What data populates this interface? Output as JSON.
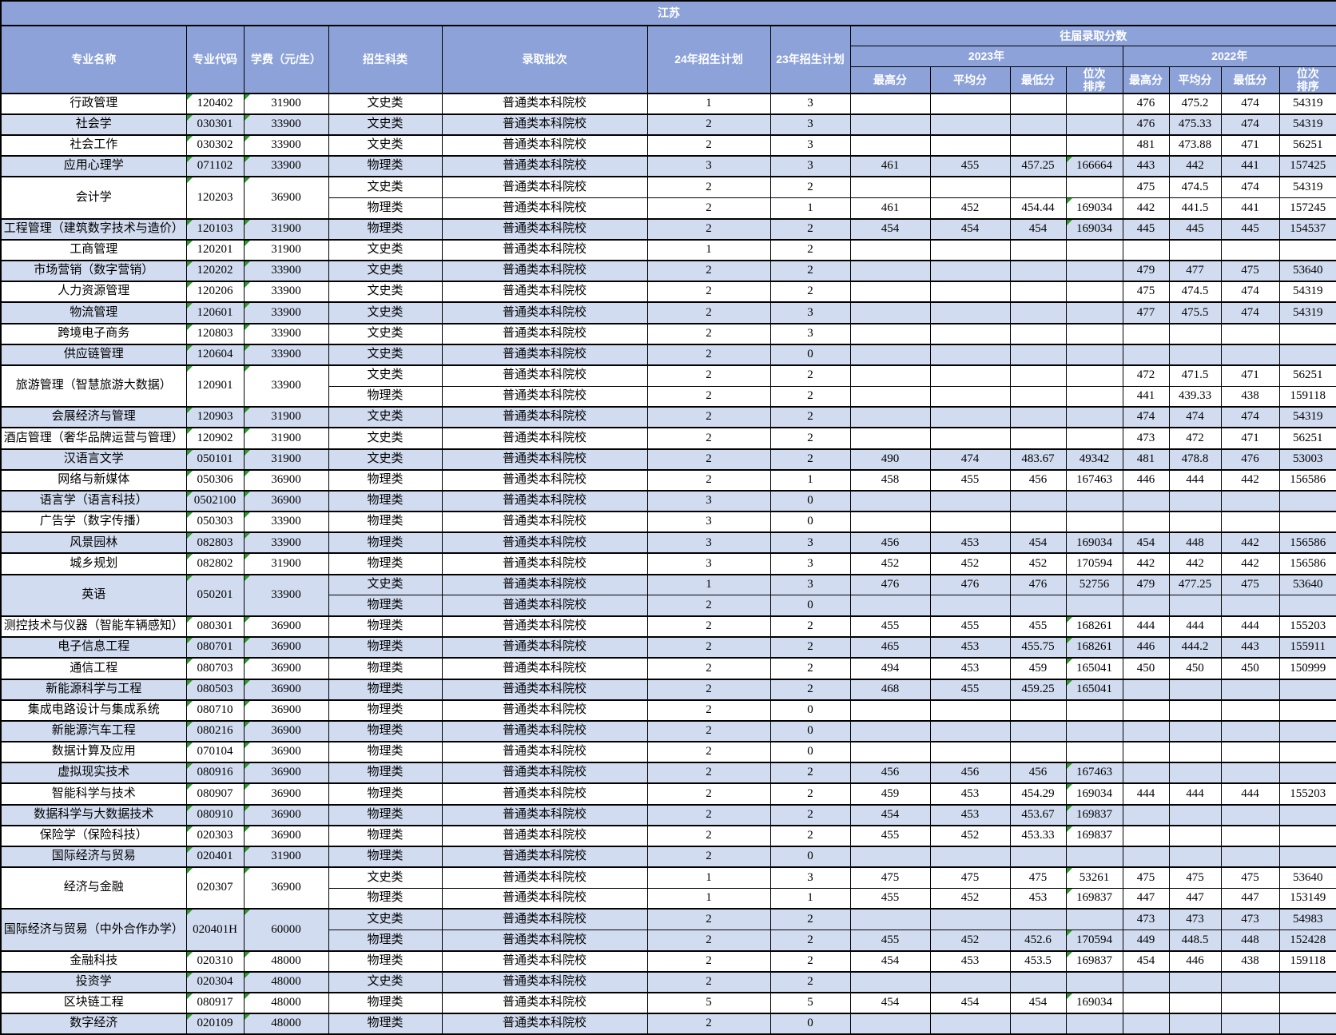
{
  "title": "江苏",
  "batch_value": "普通类本科院校",
  "header": {
    "major": "专业名称",
    "code": "专业代码",
    "fee": "学费（元/生）",
    "category": "招生科类",
    "batch": "录取批次",
    "plan24": "24年招生计划",
    "plan23": "23年招生计划",
    "past_scores": "往届录取分数",
    "year2023": "2023年",
    "year2022": "2022年",
    "max": "最高分",
    "avg": "平均分",
    "min": "最低分",
    "rank": "位次\n排序"
  },
  "colors": {
    "header_bg": "#8CA2D8",
    "alt_row_bg": "#D2DCF0",
    "row_bg": "#FFFFFF",
    "border": "#000000",
    "header_text": "#FFFFFF",
    "triangle": "#2E9A2E"
  },
  "groups": [
    {
      "name": "行政管理",
      "code": "120402",
      "fee": "31900",
      "rows": [
        {
          "cat": "文史类",
          "p24": "1",
          "p23": "3",
          "y22": [
            "476",
            "475.2",
            "474",
            "54319"
          ]
        }
      ]
    },
    {
      "name": "社会学",
      "code": "030301",
      "fee": "33900",
      "rows": [
        {
          "cat": "文史类",
          "p24": "2",
          "p23": "3",
          "y22": [
            "476",
            "475.33",
            "474",
            "54319"
          ]
        }
      ]
    },
    {
      "name": "社会工作",
      "code": "030302",
      "fee": "33900",
      "rows": [
        {
          "cat": "文史类",
          "p24": "2",
          "p23": "3",
          "y22": [
            "481",
            "473.88",
            "471",
            "56251"
          ]
        }
      ]
    },
    {
      "name": "应用心理学",
      "code": "071102",
      "fee": "33900",
      "rows": [
        {
          "cat": "物理类",
          "p24": "3",
          "p23": "3",
          "y23": [
            "461",
            "455",
            "457.25",
            "166664"
          ],
          "y22": [
            "443",
            "442",
            "441",
            "157425"
          ],
          "tri": true
        }
      ]
    },
    {
      "name": "会计学",
      "code": "120203",
      "fee": "36900",
      "rows": [
        {
          "cat": "文史类",
          "p24": "2",
          "p23": "2",
          "y22": [
            "475",
            "474.5",
            "474",
            "54319"
          ]
        },
        {
          "cat": "物理类",
          "p24": "2",
          "p23": "1",
          "y23": [
            "461",
            "452",
            "454.44",
            "169034"
          ],
          "y22": [
            "442",
            "441.5",
            "441",
            "157245"
          ],
          "tri": true
        }
      ]
    },
    {
      "name": "工程管理（建筑数字技术与造价）",
      "code": "120103",
      "fee": "31900",
      "rows": [
        {
          "cat": "物理类",
          "p24": "2",
          "p23": "2",
          "y23": [
            "454",
            "454",
            "454",
            "169034"
          ],
          "y22": [
            "445",
            "445",
            "445",
            "154537"
          ],
          "tri": true
        }
      ]
    },
    {
      "name": "工商管理",
      "code": "120201",
      "fee": "31900",
      "rows": [
        {
          "cat": "文史类",
          "p24": "1",
          "p23": "2"
        }
      ]
    },
    {
      "name": "市场营销（数字营销）",
      "code": "120202",
      "fee": "33900",
      "rows": [
        {
          "cat": "文史类",
          "p24": "2",
          "p23": "2",
          "y22": [
            "479",
            "477",
            "475",
            "53640"
          ]
        }
      ]
    },
    {
      "name": "人力资源管理",
      "code": "120206",
      "fee": "33900",
      "rows": [
        {
          "cat": "文史类",
          "p24": "2",
          "p23": "2",
          "y22": [
            "475",
            "474.5",
            "474",
            "54319"
          ]
        }
      ]
    },
    {
      "name": "物流管理",
      "code": "120601",
      "fee": "33900",
      "rows": [
        {
          "cat": "文史类",
          "p24": "2",
          "p23": "3",
          "y22": [
            "477",
            "475.5",
            "474",
            "54319"
          ]
        }
      ]
    },
    {
      "name": "跨境电子商务",
      "code": "120803",
      "fee": "33900",
      "rows": [
        {
          "cat": "文史类",
          "p24": "2",
          "p23": "3"
        }
      ]
    },
    {
      "name": "供应链管理",
      "code": "120604",
      "fee": "33900",
      "rows": [
        {
          "cat": "文史类",
          "p24": "2",
          "p23": "0"
        }
      ]
    },
    {
      "name": "旅游管理（智慧旅游大数据）",
      "code": "120901",
      "fee": "33900",
      "rows": [
        {
          "cat": "文史类",
          "p24": "2",
          "p23": "2",
          "y22": [
            "472",
            "471.5",
            "471",
            "56251"
          ]
        },
        {
          "cat": "物理类",
          "p24": "2",
          "p23": "2",
          "y22": [
            "441",
            "439.33",
            "438",
            "159118"
          ]
        }
      ]
    },
    {
      "name": "会展经济与管理",
      "code": "120903",
      "fee": "31900",
      "rows": [
        {
          "cat": "文史类",
          "p24": "2",
          "p23": "2",
          "y22": [
            "474",
            "474",
            "474",
            "54319"
          ]
        }
      ]
    },
    {
      "name": "酒店管理（奢华品牌运营与管理）",
      "code": "120902",
      "fee": "31900",
      "rows": [
        {
          "cat": "文史类",
          "p24": "2",
          "p23": "2",
          "y22": [
            "473",
            "472",
            "471",
            "56251"
          ]
        }
      ]
    },
    {
      "name": "汉语言文学",
      "code": "050101",
      "fee": "31900",
      "rows": [
        {
          "cat": "文史类",
          "p24": "2",
          "p23": "2",
          "y23": [
            "490",
            "474",
            "483.67",
            "49342"
          ],
          "y22": [
            "481",
            "478.8",
            "476",
            "53003"
          ]
        }
      ]
    },
    {
      "name": "网络与新媒体",
      "code": "050306",
      "fee": "36900",
      "rows": [
        {
          "cat": "物理类",
          "p24": "2",
          "p23": "1",
          "y23": [
            "458",
            "455",
            "456",
            "167463"
          ],
          "y22": [
            "446",
            "444",
            "442",
            "156586"
          ]
        }
      ]
    },
    {
      "name": "语言学（语言科技）",
      "code": "0502100",
      "fee": "36900",
      "rows": [
        {
          "cat": "物理类",
          "p24": "3",
          "p23": "0"
        }
      ]
    },
    {
      "name": "广告学（数字传播）",
      "code": "050303",
      "fee": "33900",
      "rows": [
        {
          "cat": "物理类",
          "p24": "3",
          "p23": "0"
        }
      ]
    },
    {
      "name": "风景园林",
      "code": "082803",
      "fee": "33900",
      "rows": [
        {
          "cat": "物理类",
          "p24": "3",
          "p23": "3",
          "y23": [
            "456",
            "453",
            "454",
            "169034"
          ],
          "y22": [
            "454",
            "448",
            "442",
            "156586"
          ]
        }
      ]
    },
    {
      "name": "城乡规划",
      "code": "082802",
      "fee": "31900",
      "rows": [
        {
          "cat": "物理类",
          "p24": "3",
          "p23": "3",
          "y23": [
            "452",
            "452",
            "452",
            "170594"
          ],
          "y22": [
            "442",
            "442",
            "442",
            "156586"
          ]
        }
      ]
    },
    {
      "name": "英语",
      "code": "050201",
      "fee": "33900",
      "rows": [
        {
          "cat": "文史类",
          "p24": "1",
          "p23": "3",
          "y23": [
            "476",
            "476",
            "476",
            "52756"
          ],
          "y22": [
            "479",
            "477.25",
            "475",
            "53640"
          ]
        },
        {
          "cat": "物理类",
          "p24": "2",
          "p23": "0"
        }
      ]
    },
    {
      "name": "测控技术与仪器（智能车辆感知）",
      "code": "080301",
      "fee": "36900",
      "rows": [
        {
          "cat": "物理类",
          "p24": "2",
          "p23": "2",
          "y23": [
            "455",
            "455",
            "455",
            "168261"
          ],
          "y22": [
            "444",
            "444",
            "444",
            "155203"
          ],
          "tri": true
        }
      ]
    },
    {
      "name": "电子信息工程",
      "code": "080701",
      "fee": "36900",
      "rows": [
        {
          "cat": "物理类",
          "p24": "2",
          "p23": "2",
          "y23": [
            "465",
            "453",
            "455.75",
            "168261"
          ],
          "y22": [
            "446",
            "444.2",
            "443",
            "155911"
          ],
          "tri": true
        }
      ]
    },
    {
      "name": "通信工程",
      "code": "080703",
      "fee": "36900",
      "rows": [
        {
          "cat": "物理类",
          "p24": "2",
          "p23": "2",
          "y23": [
            "494",
            "453",
            "459",
            "165041"
          ],
          "y22": [
            "450",
            "450",
            "450",
            "150999"
          ],
          "tri": true
        }
      ]
    },
    {
      "name": "新能源科学与工程",
      "code": "080503",
      "fee": "36900",
      "rows": [
        {
          "cat": "物理类",
          "p24": "2",
          "p23": "2",
          "y23": [
            "468",
            "455",
            "459.25",
            "165041"
          ],
          "tri": true
        }
      ]
    },
    {
      "name": "集成电路设计与集成系统",
      "code": "080710",
      "fee": "36900",
      "rows": [
        {
          "cat": "物理类",
          "p24": "2",
          "p23": "0"
        }
      ]
    },
    {
      "name": "新能源汽车工程",
      "code": "080216",
      "fee": "36900",
      "rows": [
        {
          "cat": "物理类",
          "p24": "2",
          "p23": "0"
        }
      ]
    },
    {
      "name": "数据计算及应用",
      "code": "070104",
      "fee": "36900",
      "rows": [
        {
          "cat": "物理类",
          "p24": "2",
          "p23": "0"
        }
      ]
    },
    {
      "name": "虚拟现实技术",
      "code": "080916",
      "fee": "36900",
      "rows": [
        {
          "cat": "物理类",
          "p24": "2",
          "p23": "2",
          "y23": [
            "456",
            "456",
            "456",
            "167463"
          ],
          "tri": true
        }
      ]
    },
    {
      "name": "智能科学与技术",
      "code": "080907",
      "fee": "36900",
      "rows": [
        {
          "cat": "物理类",
          "p24": "2",
          "p23": "2",
          "y23": [
            "459",
            "453",
            "454.29",
            "169034"
          ],
          "y22": [
            "444",
            "444",
            "444",
            "155203"
          ],
          "tri": true
        }
      ]
    },
    {
      "name": "数据科学与大数据技术",
      "code": "080910",
      "fee": "36900",
      "rows": [
        {
          "cat": "物理类",
          "p24": "2",
          "p23": "2",
          "y23": [
            "454",
            "453",
            "453.67",
            "169837"
          ],
          "tri": true
        }
      ]
    },
    {
      "name": "保险学（保险科技）",
      "code": "020303",
      "fee": "36900",
      "rows": [
        {
          "cat": "物理类",
          "p24": "2",
          "p23": "2",
          "y23": [
            "455",
            "452",
            "453.33",
            "169837"
          ],
          "tri": true
        }
      ]
    },
    {
      "name": "国际经济与贸易",
      "code": "020401",
      "fee": "31900",
      "rows": [
        {
          "cat": "物理类",
          "p24": "2",
          "p23": "0"
        }
      ]
    },
    {
      "name": "经济与金融",
      "code": "020307",
      "fee": "36900",
      "rows": [
        {
          "cat": "文史类",
          "p24": "1",
          "p23": "3",
          "y23": [
            "475",
            "475",
            "475",
            "53261"
          ],
          "y22": [
            "475",
            "475",
            "475",
            "53640"
          ],
          "tri": true
        },
        {
          "cat": "物理类",
          "p24": "1",
          "p23": "1",
          "y23": [
            "455",
            "452",
            "453",
            "169837"
          ],
          "y22": [
            "447",
            "447",
            "447",
            "153149"
          ],
          "tri": true
        }
      ]
    },
    {
      "name": "国际经济与贸易（中外合作办学）",
      "code": "020401H",
      "fee": "60000",
      "rows": [
        {
          "cat": "文史类",
          "p24": "2",
          "p23": "2",
          "y22": [
            "473",
            "473",
            "473",
            "54983"
          ]
        },
        {
          "cat": "物理类",
          "p24": "2",
          "p23": "2",
          "y23": [
            "455",
            "452",
            "452.6",
            "170594"
          ],
          "y22": [
            "449",
            "448.5",
            "448",
            "152428"
          ],
          "tri": true
        }
      ]
    },
    {
      "name": "金融科技",
      "code": "020310",
      "fee": "48000",
      "rows": [
        {
          "cat": "物理类",
          "p24": "2",
          "p23": "2",
          "y23": [
            "454",
            "453",
            "453.5",
            "169837"
          ],
          "y22": [
            "454",
            "446",
            "438",
            "159118"
          ],
          "tri": true
        }
      ]
    },
    {
      "name": "投资学",
      "code": "020304",
      "fee": "48000",
      "rows": [
        {
          "cat": "文史类",
          "p24": "2",
          "p23": "2"
        }
      ]
    },
    {
      "name": "区块链工程",
      "code": "080917",
      "fee": "48000",
      "rows": [
        {
          "cat": "物理类",
          "p24": "5",
          "p23": "5",
          "y23": [
            "454",
            "454",
            "454",
            "169034"
          ],
          "tri": true
        }
      ]
    },
    {
      "name": "数字经济",
      "code": "020109",
      "fee": "48000",
      "rows": [
        {
          "cat": "物理类",
          "p24": "2",
          "p23": "0"
        }
      ]
    }
  ]
}
